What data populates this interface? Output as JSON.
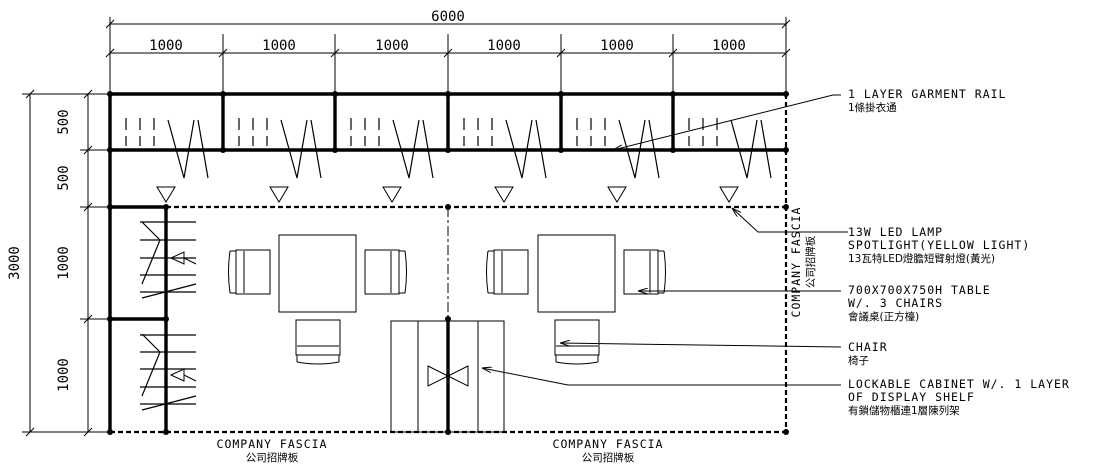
{
  "dimensions": {
    "total_width": "6000",
    "segments": [
      "1000",
      "1000",
      "1000",
      "1000",
      "1000",
      "1000"
    ],
    "total_depth": "3000",
    "depth_segments": [
      "500",
      "500",
      "1000",
      "1000"
    ]
  },
  "labels": {
    "garment_rail": {
      "en": "1 LAYER GARMENT RAIL",
      "cn": "1條掛衣通"
    },
    "led_lamp": {
      "en1": "13W LED LAMP",
      "en2": "SPOTLIGHT(YELLOW LIGHT)",
      "cn": "13瓦特LED燈膽短臂射燈(黃光)"
    },
    "table": {
      "en1": "700X700X750H TABLE",
      "en2": "W/. 3 CHAIRS",
      "cn": "會議桌(正方檯)"
    },
    "chair": {
      "en": "CHAIR",
      "cn": "椅子"
    },
    "cabinet": {
      "en1": "LOCKABLE CABINET W/. 1 LAYER",
      "en2": "OF DISPLAY SHELF",
      "cn": "有鎖儲物櫃連1層陳列架"
    },
    "fascia_right": {
      "en": "COMPANY FASCIA",
      "cn": "公司招牌板"
    },
    "fascia_bottom_left": {
      "en": "COMPANY FASCIA",
      "cn": "公司招牌板"
    },
    "fascia_bottom_right": {
      "en": "COMPANY FASCIA",
      "cn": "公司招牌板"
    }
  }
}
